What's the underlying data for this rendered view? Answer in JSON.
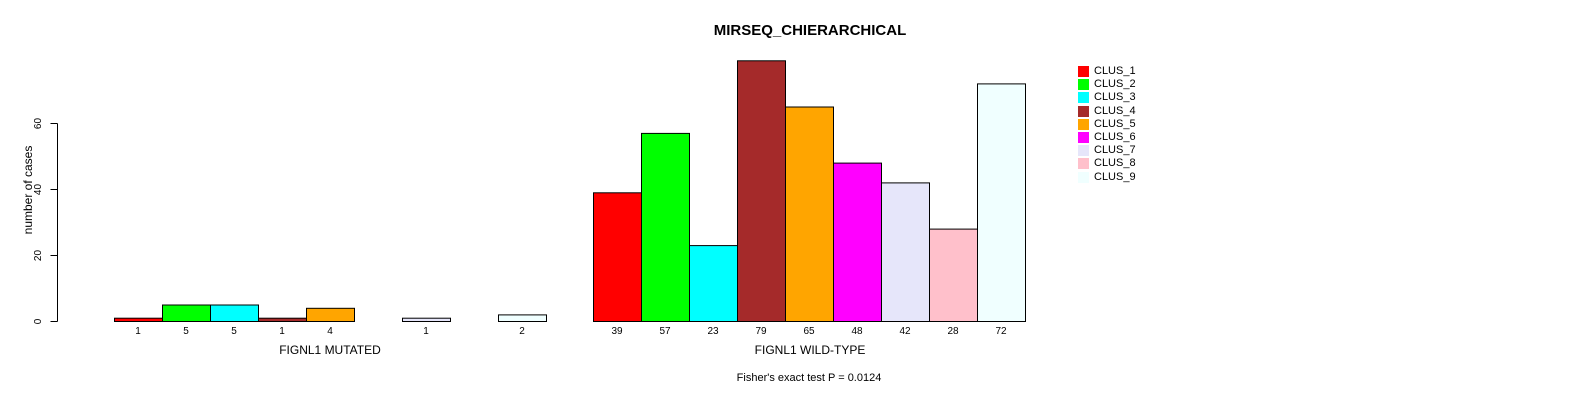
{
  "chart_data": {
    "type": "bar",
    "title": "MIRSEQ_CHIERARCHICAL",
    "ylabel": "number of cases",
    "yticks": [
      0,
      20,
      40,
      60
    ],
    "ylim": [
      0,
      80
    ],
    "grid": false,
    "legend_position": "right",
    "annotation": "Fisher's exact test P = 0.0124",
    "series": [
      {
        "name": "CLUS_1",
        "color": "#FF0000"
      },
      {
        "name": "CLUS_2",
        "color": "#00FF00"
      },
      {
        "name": "CLUS_3",
        "color": "#00FFFF"
      },
      {
        "name": "CLUS_4",
        "color": "#A52A2A"
      },
      {
        "name": "CLUS_5",
        "color": "#FFA500"
      },
      {
        "name": "CLUS_6",
        "color": "#FF00FF"
      },
      {
        "name": "CLUS_7",
        "color": "#E6E6FA"
      },
      {
        "name": "CLUS_8",
        "color": "#FFC0CB"
      },
      {
        "name": "CLUS_9",
        "color": "#F0FFFF"
      }
    ],
    "groups": [
      {
        "label": "FIGNL1 MUTATED",
        "values": [
          1,
          5,
          5,
          1,
          4,
          0,
          1,
          0,
          2
        ]
      },
      {
        "label": "FIGNL1 WILD-TYPE",
        "values": [
          39,
          57,
          23,
          79,
          65,
          48,
          42,
          28,
          72
        ]
      }
    ]
  }
}
